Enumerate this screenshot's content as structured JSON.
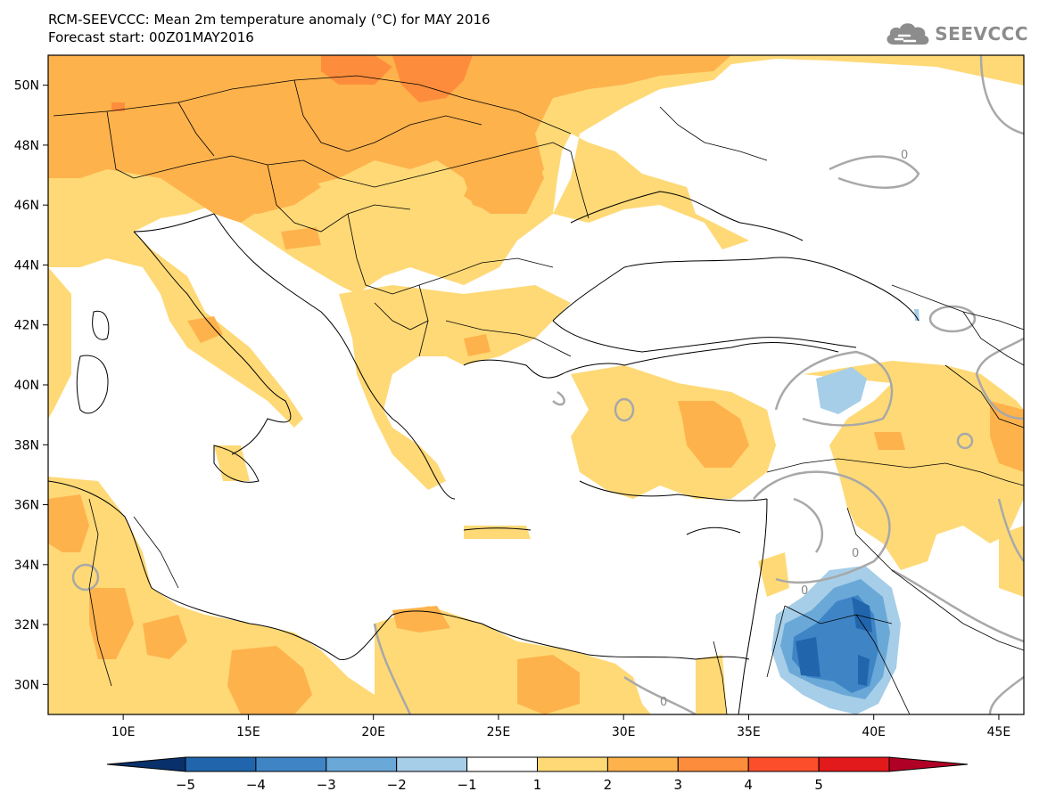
{
  "title": {
    "line1": "RCM-SEEVCCC: Mean 2m temperature anomaly (°C) for MAY 2016",
    "line2": "Forecast start: 00Z01MAY2016"
  },
  "logo": {
    "text": "SEEVCCC",
    "icon": "cloud-icon",
    "color": "#8c8c8c"
  },
  "map": {
    "lon_range": [
      7,
      46
    ],
    "lat_range": [
      29,
      51
    ],
    "x_ticks": [
      {
        "lon": 10,
        "label": "10E"
      },
      {
        "lon": 15,
        "label": "15E"
      },
      {
        "lon": 20,
        "label": "20E"
      },
      {
        "lon": 25,
        "label": "25E"
      },
      {
        "lon": 30,
        "label": "30E"
      },
      {
        "lon": 35,
        "label": "35E"
      },
      {
        "lon": 40,
        "label": "40E"
      },
      {
        "lon": 45,
        "label": "45E"
      }
    ],
    "y_ticks": [
      {
        "lat": 50,
        "label": "50N"
      },
      {
        "lat": 48,
        "label": "48N"
      },
      {
        "lat": 46,
        "label": "46N"
      },
      {
        "lat": 44,
        "label": "44N"
      },
      {
        "lat": 42,
        "label": "42N"
      },
      {
        "lat": 40,
        "label": "40N"
      },
      {
        "lat": 38,
        "label": "38N"
      },
      {
        "lat": 36,
        "label": "36N"
      },
      {
        "lat": 34,
        "label": "34N"
      },
      {
        "lat": 32,
        "label": "32N"
      },
      {
        "lat": 30,
        "label": "30N"
      }
    ],
    "contour_label": "0"
  },
  "colorbar": {
    "labels": [
      "−5",
      "−4",
      "−3",
      "−2",
      "−1",
      "1",
      "2",
      "3",
      "4",
      "5"
    ],
    "colors": [
      "#08306b",
      "#2166ac",
      "#3f85c6",
      "#6aa8d8",
      "#a6cee8",
      "#ffffff",
      "#fed976",
      "#feb24c",
      "#fd8d3c",
      "#fc4e2a",
      "#e31a1c",
      "#b10026"
    ]
  }
}
